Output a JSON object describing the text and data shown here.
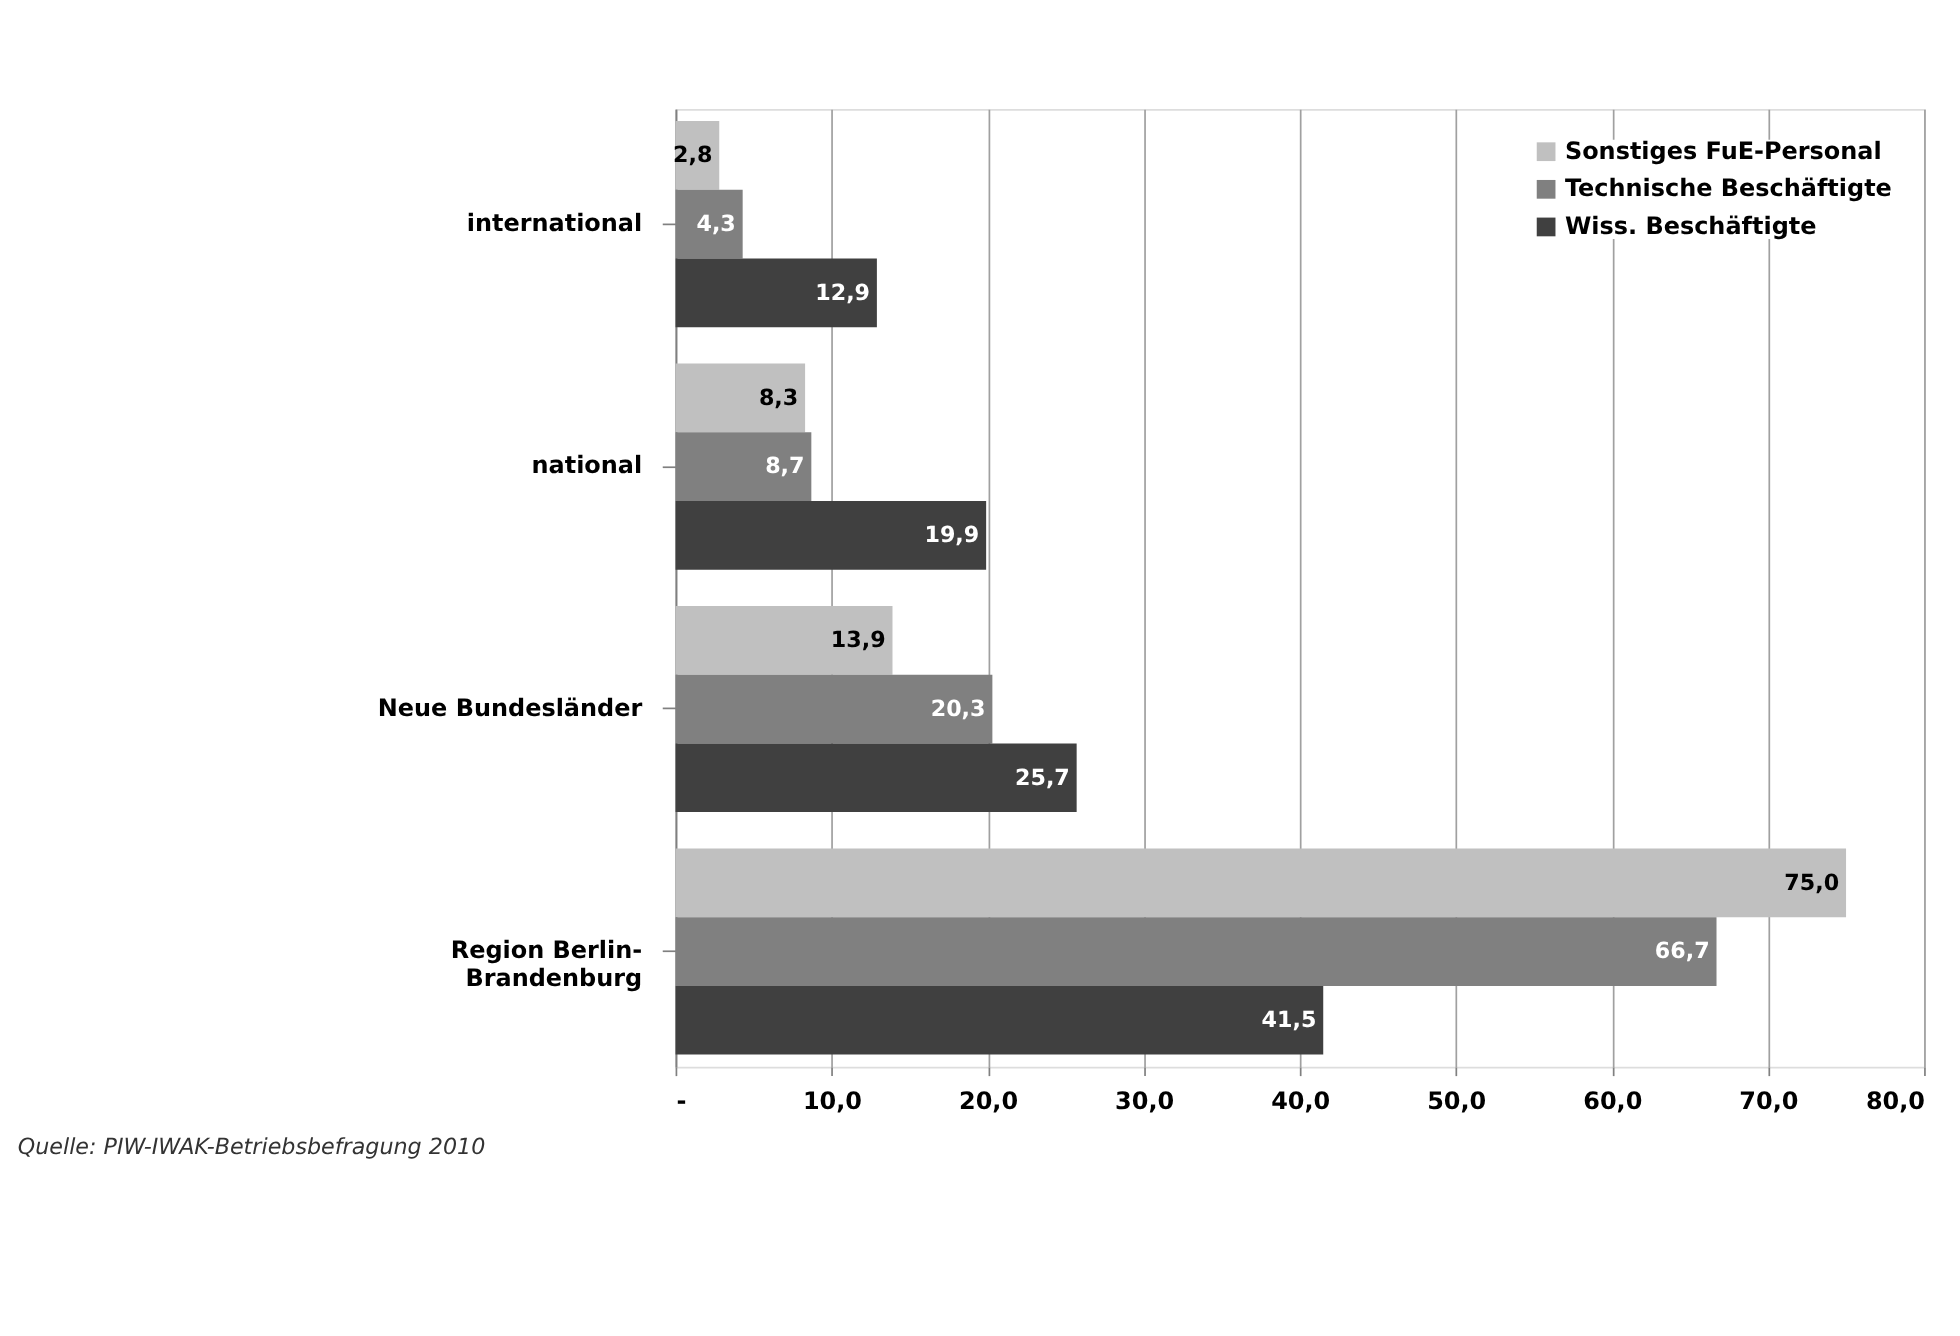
{
  "chart_data": {
    "type": "bar",
    "orientation": "horizontal",
    "categories": [
      "international",
      "national",
      "Neue Bundesländer",
      "Region Berlin-Brandenburg"
    ],
    "series": [
      {
        "name": "Sonstiges FuE-Personal",
        "color": "#c0c0c0",
        "values": [
          2.8,
          8.3,
          13.9,
          75.0
        ],
        "value_labels": [
          "2,8",
          "8,3",
          "13,9",
          "75,0"
        ]
      },
      {
        "name": "Technische Beschäftigte",
        "color": "#808080",
        "values": [
          4.3,
          8.7,
          20.3,
          66.7
        ],
        "value_labels": [
          "4,3",
          "8,7",
          "20,3",
          "66,7"
        ]
      },
      {
        "name": "Wiss. Beschäftigte",
        "color": "#404040",
        "values": [
          12.9,
          19.9,
          25.7,
          41.5
        ],
        "value_labels": [
          "12,9",
          "19,9",
          "25,7",
          "41,5"
        ]
      }
    ],
    "xlim": [
      0,
      80
    ],
    "xticks": [
      {
        "value": 0,
        "label": "-"
      },
      {
        "value": 10,
        "label": "10,0"
      },
      {
        "value": 20,
        "label": "20,0"
      },
      {
        "value": 30,
        "label": "30,0"
      },
      {
        "value": 40,
        "label": "40,0"
      },
      {
        "value": 50,
        "label": "50,0"
      },
      {
        "value": 60,
        "label": "60,0"
      },
      {
        "value": 70,
        "label": "70,0"
      },
      {
        "value": 80,
        "label": "80,0"
      }
    ],
    "grid": "x",
    "legend": "top right",
    "annotations": [
      "Quelle:    PIW-IWAK-Betriebsbefragung 2010"
    ]
  }
}
